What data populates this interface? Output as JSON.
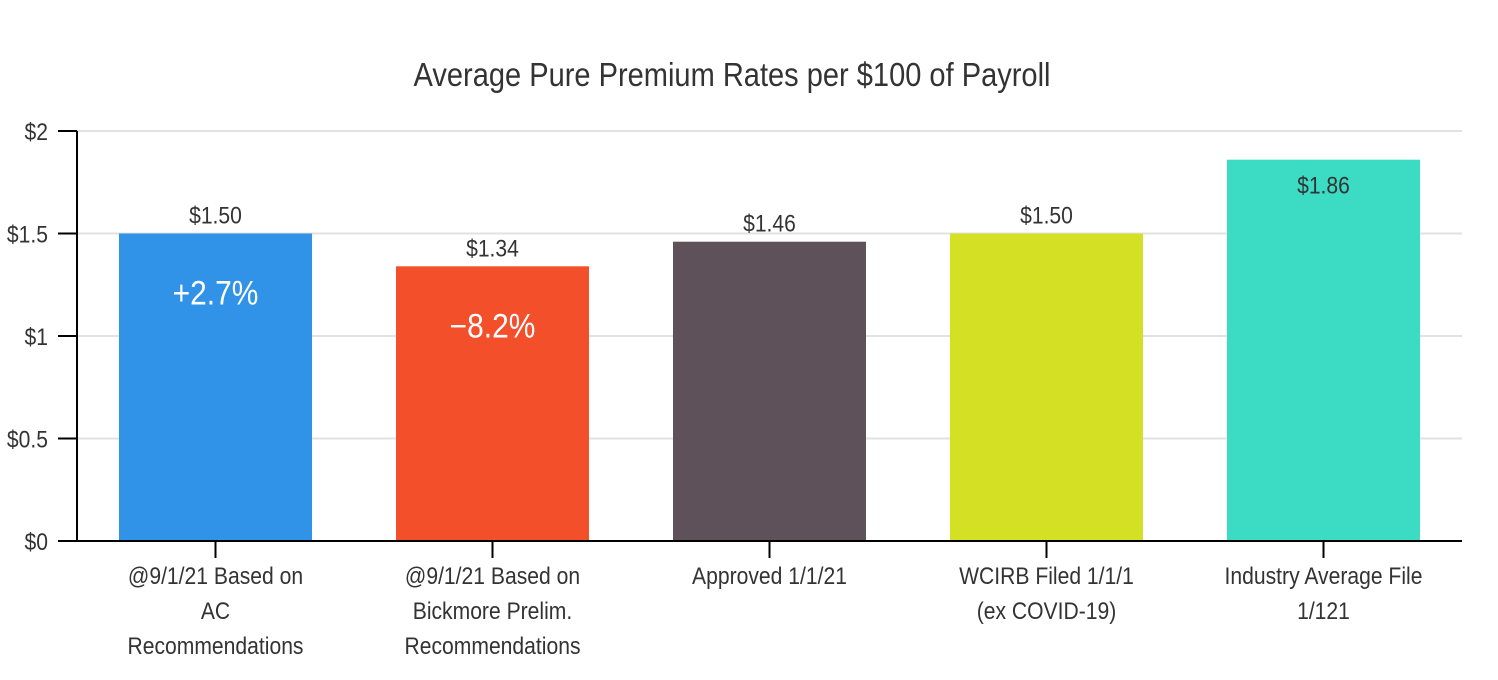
{
  "chart_data": {
    "type": "bar",
    "title": "Average Pure Premium Rates per $100 of Payroll",
    "xlabel": "",
    "ylabel": "",
    "ylim": [
      0,
      2
    ],
    "yticks": [
      0,
      0.5,
      1,
      1.5,
      2
    ],
    "ytick_labels": [
      "$0",
      "$0.5",
      "$1",
      "$1.5",
      "$2"
    ],
    "grid": true,
    "categories": [
      [
        "@9/1/21 Based on",
        "AC",
        "Recommendations"
      ],
      [
        "@9/1/21 Based on",
        "Bickmore Prelim.",
        "Recommendations"
      ],
      [
        "Approved 1/1/21"
      ],
      [
        "WCIRB Filed 1/1/1",
        "(ex COVID-19)"
      ],
      [
        "Industry Average File",
        "1/121"
      ]
    ],
    "values": [
      1.5,
      1.34,
      1.46,
      1.5,
      1.86
    ],
    "data_labels": [
      "$1.50",
      "$1.34",
      "$1.46",
      "$1.50",
      "$1.86"
    ],
    "annotations": [
      "+2.7%",
      "−8.2%",
      "",
      "",
      ""
    ],
    "colors": [
      "#3093e8",
      "#f44f2b",
      "#5f515a",
      "#d4e024",
      "#3cdcc4"
    ]
  }
}
